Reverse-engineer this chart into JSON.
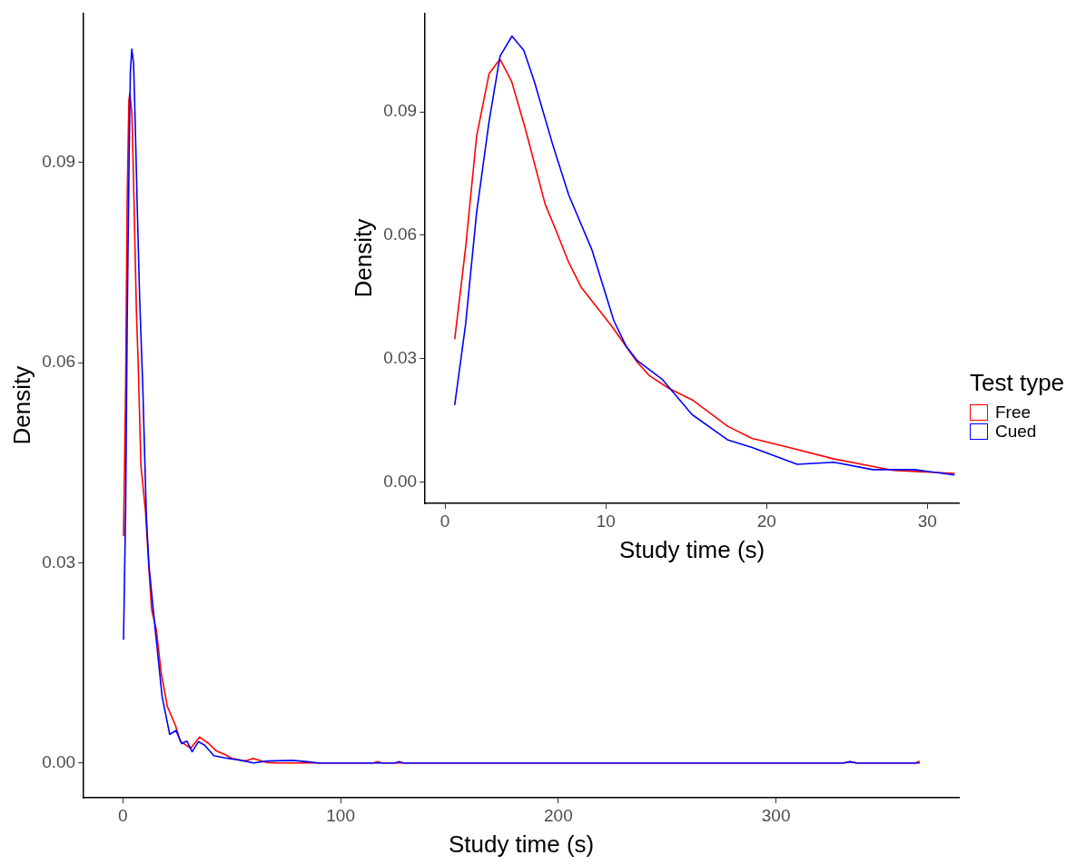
{
  "chart_data": [
    {
      "type": "line",
      "xlabel": "Study time (s)",
      "ylabel": "Density",
      "xlim": [
        -18,
        384
      ],
      "ylim": [
        -0.0052,
        0.1124
      ],
      "xticks": [
        0,
        100,
        200,
        300
      ],
      "yticks": [
        {
          "value": 0,
          "label": "0.00"
        },
        {
          "value": 0.03,
          "label": "0.03"
        },
        {
          "value": 0.06,
          "label": "0.06"
        },
        {
          "value": 0.09,
          "label": "0.09"
        }
      ],
      "legend": "right",
      "legend_title": "Test type",
      "series": [
        {
          "name": "Free",
          "color": "#ff0000",
          "x": [
            0.3,
            1.28,
            1.96,
            2.74,
            3.2,
            4.14,
            4.97,
            6.23,
            7.0,
            8.3,
            10.4,
            11.96,
            13.2,
            15.36,
            17.6,
            20.4,
            24.2,
            26.3,
            31.1,
            35.2,
            39.5,
            43,
            46.7,
            50.2,
            56.2,
            59.8,
            65.8,
            70,
            115,
            117,
            119,
            331,
            334,
            337,
            364,
            366
          ],
          "values": [
            0.034,
            0.057,
            0.084,
            0.0993,
            0.1004,
            0.0974,
            0.0862,
            0.0675,
            0.0602,
            0.0445,
            0.0377,
            0.0291,
            0.023,
            0.02,
            0.0135,
            0.0085,
            0.0056,
            0.0033,
            0.0022,
            0.0039,
            0.0029,
            0.0018,
            0.0013,
            0.0007,
            0.0003,
            0.0007,
            0.0001,
            0,
            0,
            0.0002,
            0,
            0,
            0.0002,
            0,
            0,
            0.0003
          ]
        },
        {
          "name": "Cued",
          "color": "#0000ff",
          "x": [
            0.3,
            1.28,
            1.96,
            2.74,
            3.42,
            4.1,
            4.9,
            5.55,
            6.72,
            7.69,
            9.14,
            10.8,
            12.0,
            14.4,
            18,
            21.5,
            24.4,
            27,
            29.4,
            31.8,
            34.7,
            37.5,
            41.8,
            46.6,
            56.2,
            60,
            65.8,
            77.8,
            85,
            89.8,
            125,
            126.9,
            129,
            331,
            334,
            337,
            366
          ],
          "values": [
            0.0185,
            0.0384,
            0.0654,
            0.0877,
            0.1035,
            0.107,
            0.1049,
            0.0974,
            0.0817,
            0.0698,
            0.0564,
            0.0368,
            0.0295,
            0.0215,
            0.01,
            0.0043,
            0.0049,
            0.0029,
            0.0033,
            0.0017,
            0.0032,
            0.0027,
            0.0011,
            0.0008,
            0.0003,
            0,
            0.0003,
            0.0004,
            0.0002,
            0,
            0,
            0.0002,
            0,
            0,
            0.0002,
            0,
            0
          ]
        }
      ]
    },
    {
      "type": "line",
      "xlabel": "Study time (s)",
      "ylabel": "Density",
      "xlim": [
        -1.24,
        31.96
      ],
      "ylim": [
        -0.0052,
        0.114
      ],
      "xticks": [
        0,
        10,
        20,
        30
      ],
      "yticks": [
        {
          "value": 0,
          "label": "0.00"
        },
        {
          "value": 0.03,
          "label": "0.03"
        },
        {
          "value": 0.06,
          "label": "0.06"
        },
        {
          "value": 0.09,
          "label": "0.09"
        }
      ],
      "series": [
        {
          "color": "#ff0000",
          "x": [
            0.6,
            1.28,
            1.96,
            2.74,
            3.42,
            4.14,
            4.97,
            6.23,
            7.0,
            7.69,
            8.46,
            10.4,
            11.96,
            12.73,
            13.9,
            15.36,
            17.6,
            19.1,
            21.4,
            24.2,
            27.9,
            31.7
          ],
          "values": [
            0.0347,
            0.057,
            0.084,
            0.0993,
            0.1028,
            0.0974,
            0.0862,
            0.0675,
            0.0602,
            0.0534,
            0.0474,
            0.0377,
            0.0291,
            0.0258,
            0.0228,
            0.02,
            0.0135,
            0.0106,
            0.0084,
            0.0056,
            0.0028,
            0.0021
          ]
        },
        {
          "color": "#0000ff",
          "x": [
            0.6,
            1.28,
            1.96,
            2.74,
            3.42,
            4.16,
            4.9,
            5.55,
            6.72,
            7.69,
            9.14,
            10.5,
            11.28,
            11.96,
            13.5,
            15.36,
            17.6,
            19.1,
            21.9,
            24.2,
            26.6,
            29.2,
            31.7
          ],
          "values": [
            0.0187,
            0.0384,
            0.0654,
            0.0877,
            0.1035,
            0.1084,
            0.1049,
            0.0974,
            0.0817,
            0.0698,
            0.0564,
            0.0392,
            0.0329,
            0.0295,
            0.025,
            0.0164,
            0.0102,
            0.0084,
            0.0043,
            0.0048,
            0.003,
            0.003,
            0.0017
          ]
        }
      ]
    }
  ]
}
